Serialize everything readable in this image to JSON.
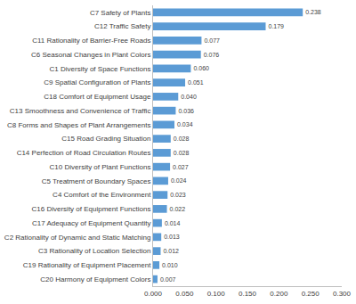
{
  "chart_data": {
    "type": "bar",
    "orientation": "horizontal",
    "categories": [
      "C7 Safety of Plants",
      "C12 Traffic Safety",
      "C11 Rationality of Barrier-Free Roads",
      "C6 Seasonal Changes in Plant Colors",
      "C1 Diversity of Space Functions",
      "C9 Spatial Configuration of Plants",
      "C18 Comfort of Equipment Usage",
      "C13 Smoothness and Convenience of Traffic",
      "C8 Forms and Shapes of Plant Arrangements",
      "C15 Road Grading Situation",
      "C14 Perfection of Road Circulation Routes",
      "C10 Diversity of Plant Functions",
      "C5 Treatment of Boundary Spaces",
      "C4 Comfort of the Environment",
      "C16 Diversity of Equipment Functions",
      "C17 Adequacy of Equipment Quantity",
      "C2 Rationality of Dynamic and Static Matching",
      "C3 Rationality of Location Selection",
      "C19 Rationality of Equipment Placement",
      "C20 Harmony of Equipment Colors"
    ],
    "values": [
      0.238,
      0.179,
      0.077,
      0.076,
      0.06,
      0.051,
      0.04,
      0.036,
      0.034,
      0.028,
      0.028,
      0.027,
      0.024,
      0.023,
      0.022,
      0.014,
      0.013,
      0.012,
      0.01,
      0.007
    ],
    "value_labels": [
      "0.238",
      "0.179",
      "0.077",
      "0.076",
      "0.060",
      "0.051",
      "0.040",
      "0.036",
      "0.034",
      "0.028",
      "0.028",
      "0.027",
      "0.024",
      "0.023",
      "0.022",
      "0.014",
      "0.013",
      "0.012",
      "0.010",
      "0.007"
    ],
    "data_labels": true,
    "color": "#5b9bd5",
    "xlim": [
      0,
      0.3
    ],
    "xticks": [
      {
        "value": 0,
        "label": "0.000"
      },
      {
        "value": 0.05,
        "label": "0.050"
      },
      {
        "value": 0.1,
        "label": "0.100"
      },
      {
        "value": 0.15,
        "label": "0.150"
      },
      {
        "value": 0.2,
        "label": "0.200"
      },
      {
        "value": 0.25,
        "label": "0.250"
      },
      {
        "value": 0.3,
        "label": "0.300"
      }
    ],
    "grid": false
  }
}
